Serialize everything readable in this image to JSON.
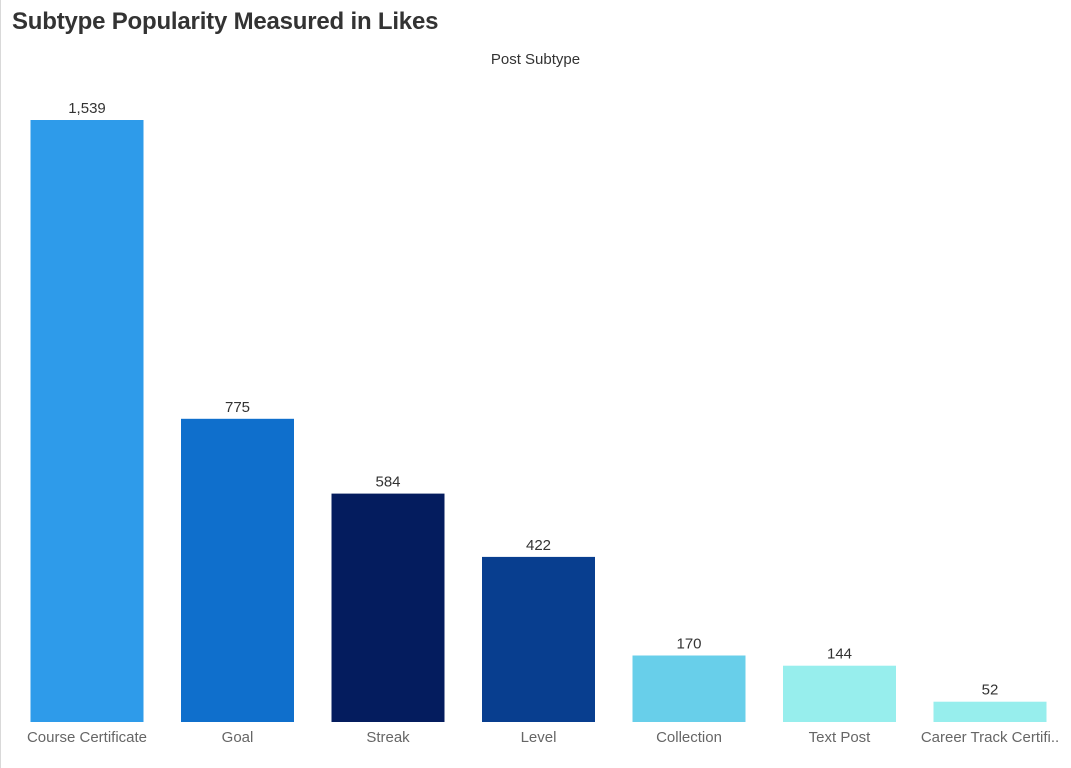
{
  "title": "Subtype Popularity Measured in Likes",
  "chart_data": {
    "type": "bar",
    "title": "Subtype Popularity Measured in Likes",
    "header": "Post Subtype",
    "categories": [
      "Course Certificate",
      "Goal",
      "Streak",
      "Level",
      "Collection",
      "Text Post",
      "Career Track Certifi.."
    ],
    "values": [
      1539,
      775,
      584,
      422,
      170,
      144,
      52
    ],
    "value_labels": [
      "1,539",
      "775",
      "584",
      "422",
      "170",
      "144",
      "52"
    ],
    "colors": [
      "#2e9bea",
      "#0f6fcc",
      "#041c5e",
      "#083e8f",
      "#68cfea",
      "#97eeed",
      "#97eeed"
    ],
    "ylim": [
      0,
      1539
    ],
    "grid": false,
    "legend": "none"
  }
}
